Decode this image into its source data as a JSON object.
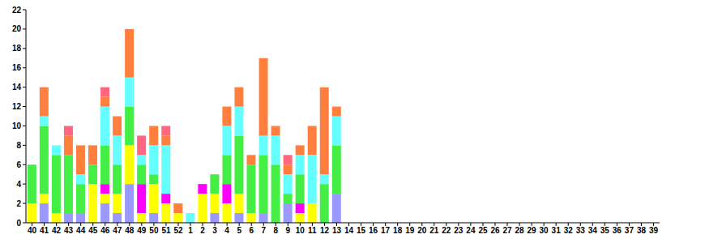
{
  "chart_data": {
    "type": "bar",
    "stacked": true,
    "categories": [
      "40",
      "41",
      "42",
      "43",
      "44",
      "45",
      "46",
      "47",
      "48",
      "49",
      "50",
      "51",
      "52",
      "1",
      "2",
      "3",
      "4",
      "5",
      "6",
      "7",
      "8",
      "9",
      "10",
      "11",
      "12",
      "13",
      "14",
      "15",
      "16",
      "17",
      "18",
      "19",
      "20",
      "21",
      "22",
      "23",
      "24",
      "25",
      "26",
      "27",
      "28",
      "29",
      "30",
      "31",
      "32",
      "33",
      "34",
      "35",
      "36",
      "37",
      "38",
      "39"
    ],
    "series": [
      {
        "color": "#9999ff",
        "values": [
          0,
          2,
          0,
          1,
          1,
          0,
          2,
          1,
          4,
          0,
          1,
          0,
          0,
          0,
          0,
          1,
          0,
          1,
          0,
          1,
          0,
          2,
          0,
          0,
          0,
          3,
          0,
          0,
          0,
          0,
          0,
          0,
          0,
          0,
          0,
          0,
          0,
          0,
          0,
          0,
          0,
          0,
          0,
          0,
          0,
          0,
          0,
          0,
          0,
          0,
          0,
          0
        ]
      },
      {
        "color": "#ffff00",
        "values": [
          2,
          1,
          1,
          0,
          0,
          4,
          1,
          2,
          4,
          1,
          3,
          2,
          1,
          0,
          3,
          2,
          2,
          2,
          1,
          0,
          0,
          0,
          1,
          2,
          0,
          0,
          0,
          0,
          0,
          0,
          0,
          0,
          0,
          0,
          0,
          0,
          0,
          0,
          0,
          0,
          0,
          0,
          0,
          0,
          0,
          0,
          0,
          0,
          0,
          0,
          0,
          0
        ]
      },
      {
        "color": "#ff00ff",
        "values": [
          0,
          0,
          0,
          0,
          0,
          0,
          1,
          0,
          0,
          3,
          0,
          1,
          0,
          0,
          1,
          0,
          2,
          0,
          0,
          0,
          0,
          0,
          1,
          0,
          0,
          0,
          0,
          0,
          0,
          0,
          0,
          0,
          0,
          0,
          0,
          0,
          0,
          0,
          0,
          0,
          0,
          0,
          0,
          0,
          0,
          0,
          0,
          0,
          0,
          0,
          0,
          0
        ]
      },
      {
        "color": "#44ee44",
        "values": [
          4,
          7,
          6,
          6,
          3,
          2,
          4,
          3,
          4,
          2,
          1,
          0,
          0,
          0,
          0,
          2,
          3,
          6,
          5,
          6,
          6,
          1,
          3,
          0,
          4,
          5,
          0,
          0,
          0,
          0,
          0,
          0,
          0,
          0,
          0,
          0,
          0,
          0,
          0,
          0,
          0,
          0,
          0,
          0,
          0,
          0,
          0,
          0,
          0,
          0,
          0,
          0
        ]
      },
      {
        "color": "#66ffff",
        "values": [
          0,
          1,
          1,
          0,
          1,
          0,
          4,
          3,
          3,
          1,
          3,
          5,
          0,
          1,
          0,
          0,
          3,
          3,
          0,
          2,
          3,
          2,
          2,
          5,
          1,
          3,
          0,
          0,
          0,
          0,
          0,
          0,
          0,
          0,
          0,
          0,
          0,
          0,
          0,
          0,
          0,
          0,
          0,
          0,
          0,
          0,
          0,
          0,
          0,
          0,
          0,
          0
        ]
      },
      {
        "color": "#ff7f3f",
        "values": [
          0,
          3,
          0,
          2,
          3,
          2,
          1,
          2,
          5,
          0,
          2,
          1,
          1,
          0,
          0,
          0,
          2,
          2,
          1,
          8,
          1,
          1,
          1,
          3,
          9,
          1,
          0,
          0,
          0,
          0,
          0,
          0,
          0,
          0,
          0,
          0,
          0,
          0,
          0,
          0,
          0,
          0,
          0,
          0,
          0,
          0,
          0,
          0,
          0,
          0,
          0,
          0
        ]
      },
      {
        "color": "#ff6680",
        "values": [
          0,
          0,
          0,
          1,
          0,
          0,
          1,
          0,
          0,
          2,
          0,
          1,
          0,
          0,
          0,
          0,
          0,
          0,
          0,
          0,
          0,
          1,
          0,
          0,
          0,
          0,
          0,
          0,
          0,
          0,
          0,
          0,
          0,
          0,
          0,
          0,
          0,
          0,
          0,
          0,
          0,
          0,
          0,
          0,
          0,
          0,
          0,
          0,
          0,
          0,
          0,
          0
        ]
      }
    ],
    "ylim": [
      0,
      22
    ],
    "yticks": [
      0,
      2,
      4,
      6,
      8,
      10,
      12,
      14,
      16,
      18,
      20,
      22
    ]
  }
}
